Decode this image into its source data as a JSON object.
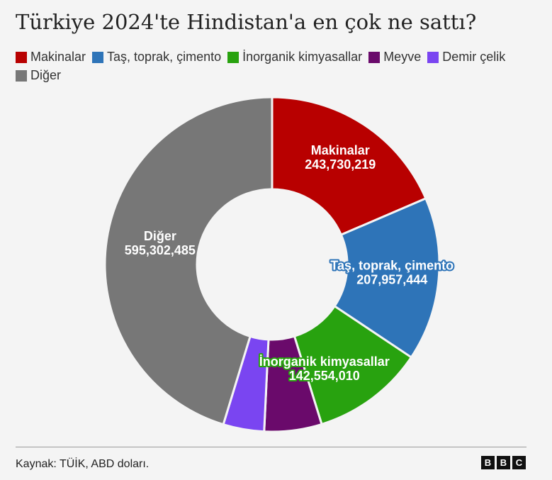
{
  "chart_data": {
    "type": "pie",
    "title": "Türkiye 2024'te Hindistan'a en çok ne sattı?",
    "legend_position": "top",
    "categories": [
      "Makinalar",
      "Taş, toprak, çimento",
      "İnorganik kimyasallar",
      "Meyve",
      "Demir çelik",
      "Diğer"
    ],
    "series": [
      {
        "values": [
          243730219,
          207957444,
          142554010,
          73000000,
          52000000,
          595302485
        ],
        "labels": [
          "243,730,219",
          "207,957,444",
          "142,554,010",
          "",
          "",
          "595,302,485"
        ]
      }
    ],
    "colors": [
      "#b80000",
      "#2e74b8",
      "#28a20f",
      "#6a0a6b",
      "#7a45f1",
      "#777777"
    ]
  },
  "footer": {
    "source": "Kaynak: TÜİK, ABD doları.",
    "logo": [
      "B",
      "B",
      "C"
    ]
  }
}
